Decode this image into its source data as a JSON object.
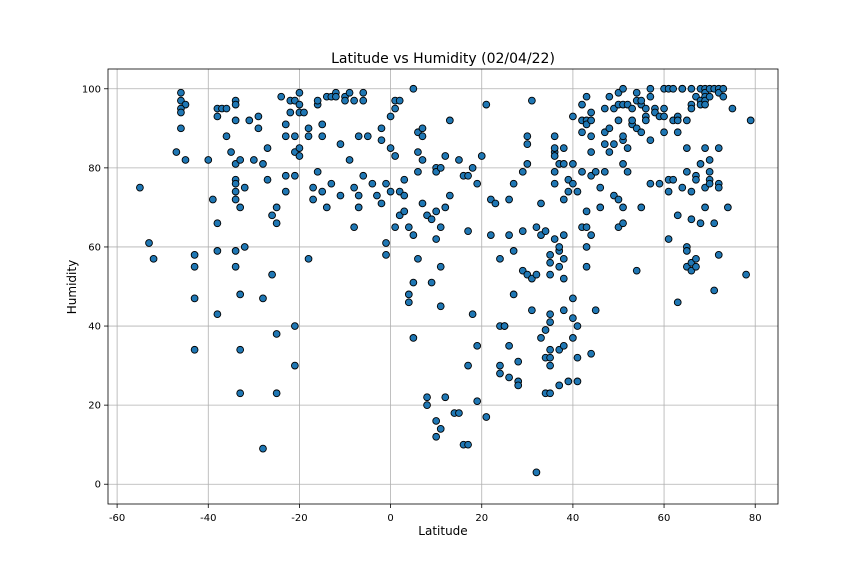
{
  "chart_data": {
    "type": "scatter",
    "title": "Latitude vs Humidity (02/04/22)",
    "xlabel": "Latitude",
    "ylabel": "Humidity",
    "xlim": [
      -62,
      85
    ],
    "ylim": [
      -5,
      105
    ],
    "xticks": [
      -60,
      -40,
      -20,
      0,
      20,
      40,
      60,
      80
    ],
    "yticks": [
      0,
      20,
      40,
      60,
      80,
      100
    ],
    "grid": true,
    "marker_color": "#1f77b4",
    "marker_edge": "#000000",
    "points": [
      [
        -55,
        75
      ],
      [
        -53,
        61
      ],
      [
        -52,
        57
      ],
      [
        -46,
        99
      ],
      [
        -46,
        97
      ],
      [
        -45,
        96
      ],
      [
        -46,
        95
      ],
      [
        -46,
        94
      ],
      [
        -46,
        90
      ],
      [
        -47,
        84
      ],
      [
        -45,
        82
      ],
      [
        -43,
        58
      ],
      [
        -43,
        55
      ],
      [
        -43,
        47
      ],
      [
        -43,
        34
      ],
      [
        -40,
        82
      ],
      [
        -39,
        72
      ],
      [
        -38,
        95
      ],
      [
        -38,
        93
      ],
      [
        -38,
        66
      ],
      [
        -38,
        59
      ],
      [
        -38,
        43
      ],
      [
        -37,
        95
      ],
      [
        -36,
        88
      ],
      [
        -36,
        95
      ],
      [
        -35,
        84
      ],
      [
        -34,
        97
      ],
      [
        -34,
        96
      ],
      [
        -34,
        92
      ],
      [
        -34,
        81
      ],
      [
        -34,
        77
      ],
      [
        -34,
        76
      ],
      [
        -34,
        74
      ],
      [
        -34,
        72
      ],
      [
        -33,
        70
      ],
      [
        -34,
        59
      ],
      [
        -34,
        55
      ],
      [
        -33,
        48
      ],
      [
        -33,
        34
      ],
      [
        -33,
        23
      ],
      [
        -33,
        82
      ],
      [
        -32,
        75
      ],
      [
        -32,
        60
      ],
      [
        -31,
        92
      ],
      [
        -30,
        82
      ],
      [
        -29,
        90
      ],
      [
        -29,
        93
      ],
      [
        -28,
        81
      ],
      [
        -28,
        47
      ],
      [
        -28,
        9
      ],
      [
        -27,
        77
      ],
      [
        -27,
        85
      ],
      [
        -26,
        68
      ],
      [
        -26,
        53
      ],
      [
        -25,
        66
      ],
      [
        -25,
        70
      ],
      [
        -25,
        38
      ],
      [
        -25,
        23
      ],
      [
        -24,
        98
      ],
      [
        -23,
        91
      ],
      [
        -23,
        88
      ],
      [
        -23,
        78
      ],
      [
        -23,
        74
      ],
      [
        -22,
        97
      ],
      [
        -22,
        94
      ],
      [
        -21,
        97
      ],
      [
        -21,
        88
      ],
      [
        -21,
        84
      ],
      [
        -21,
        78
      ],
      [
        -21,
        40
      ],
      [
        -21,
        30
      ],
      [
        -20,
        99
      ],
      [
        -20,
        96
      ],
      [
        -20,
        94
      ],
      [
        -20,
        85
      ],
      [
        -20,
        83
      ],
      [
        -19,
        94
      ],
      [
        -18,
        90
      ],
      [
        -18,
        88
      ],
      [
        -18,
        57
      ],
      [
        -17,
        75
      ],
      [
        -17,
        72
      ],
      [
        -16,
        96
      ],
      [
        -16,
        97
      ],
      [
        -16,
        79
      ],
      [
        -15,
        88
      ],
      [
        -15,
        91
      ],
      [
        -15,
        74
      ],
      [
        -14,
        98
      ],
      [
        -14,
        70
      ],
      [
        -13,
        98
      ],
      [
        -13,
        76
      ],
      [
        -12,
        99
      ],
      [
        -12,
        98
      ],
      [
        -11,
        73
      ],
      [
        -11,
        86
      ],
      [
        -10,
        98
      ],
      [
        -10,
        97
      ],
      [
        -9,
        99
      ],
      [
        -9,
        82
      ],
      [
        -8,
        97
      ],
      [
        -8,
        75
      ],
      [
        -8,
        65
      ],
      [
        -7,
        70
      ],
      [
        -7,
        88
      ],
      [
        -7,
        73
      ],
      [
        -6,
        78
      ],
      [
        -6,
        99
      ],
      [
        -6,
        97
      ],
      [
        -5,
        88
      ],
      [
        -4,
        76
      ],
      [
        -3,
        73
      ],
      [
        -2,
        90
      ],
      [
        -2,
        87
      ],
      [
        -2,
        71
      ],
      [
        -1,
        61
      ],
      [
        -1,
        58
      ],
      [
        -1,
        76
      ],
      [
        0,
        85
      ],
      [
        0,
        93
      ],
      [
        0,
        74
      ],
      [
        1,
        97
      ],
      [
        1,
        95
      ],
      [
        1,
        83
      ],
      [
        1,
        65
      ],
      [
        2,
        97
      ],
      [
        2,
        74
      ],
      [
        2,
        68
      ],
      [
        3,
        73
      ],
      [
        3,
        69
      ],
      [
        3,
        77
      ],
      [
        4,
        46
      ],
      [
        4,
        48
      ],
      [
        4,
        65
      ],
      [
        5,
        100
      ],
      [
        5,
        37
      ],
      [
        5,
        63
      ],
      [
        5,
        51
      ],
      [
        6,
        84
      ],
      [
        6,
        79
      ],
      [
        6,
        89
      ],
      [
        6,
        57
      ],
      [
        7,
        90
      ],
      [
        7,
        88
      ],
      [
        7,
        82
      ],
      [
        7,
        71
      ],
      [
        8,
        68
      ],
      [
        8,
        22
      ],
      [
        8,
        20
      ],
      [
        9,
        67
      ],
      [
        9,
        51
      ],
      [
        10,
        80
      ],
      [
        10,
        79
      ],
      [
        10,
        62
      ],
      [
        10,
        69
      ],
      [
        10,
        12
      ],
      [
        10,
        16
      ],
      [
        11,
        80
      ],
      [
        11,
        65
      ],
      [
        11,
        55
      ],
      [
        11,
        45
      ],
      [
        11,
        14
      ],
      [
        12,
        70
      ],
      [
        12,
        83
      ],
      [
        12,
        22
      ],
      [
        13,
        92
      ],
      [
        13,
        73
      ],
      [
        14,
        18
      ],
      [
        15,
        18
      ],
      [
        15,
        82
      ],
      [
        16,
        78
      ],
      [
        16,
        10
      ],
      [
        17,
        10
      ],
      [
        17,
        78
      ],
      [
        17,
        64
      ],
      [
        17,
        30
      ],
      [
        18,
        80
      ],
      [
        18,
        43
      ],
      [
        19,
        76
      ],
      [
        19,
        35
      ],
      [
        19,
        21
      ],
      [
        20,
        83
      ],
      [
        21,
        17
      ],
      [
        21,
        96
      ],
      [
        22,
        63
      ],
      [
        22,
        72
      ],
      [
        23,
        71
      ],
      [
        24,
        57
      ],
      [
        24,
        40
      ],
      [
        24,
        30
      ],
      [
        24,
        28
      ],
      [
        25,
        40
      ],
      [
        25,
        40
      ],
      [
        26,
        72
      ],
      [
        26,
        63
      ],
      [
        26,
        35
      ],
      [
        26,
        27
      ],
      [
        27,
        76
      ],
      [
        27,
        48
      ],
      [
        27,
        59
      ],
      [
        28,
        26
      ],
      [
        28,
        31
      ],
      [
        28,
        25
      ],
      [
        29,
        64
      ],
      [
        29,
        54
      ],
      [
        29,
        79
      ],
      [
        30,
        53
      ],
      [
        30,
        81
      ],
      [
        30,
        86
      ],
      [
        30,
        88
      ],
      [
        31,
        97
      ],
      [
        31,
        44
      ],
      [
        31,
        52
      ],
      [
        32,
        53
      ],
      [
        32,
        3
      ],
      [
        32,
        65
      ],
      [
        33,
        63
      ],
      [
        33,
        37
      ],
      [
        33,
        71
      ],
      [
        34,
        23
      ],
      [
        34,
        64
      ],
      [
        34,
        32
      ],
      [
        34,
        39
      ],
      [
        35,
        41
      ],
      [
        35,
        32
      ],
      [
        35,
        30
      ],
      [
        35,
        53
      ],
      [
        35,
        58
      ],
      [
        35,
        56
      ],
      [
        35,
        34
      ],
      [
        35,
        43
      ],
      [
        35,
        23
      ],
      [
        36,
        88
      ],
      [
        36,
        84
      ],
      [
        36,
        83
      ],
      [
        36,
        79
      ],
      [
        36,
        62
      ],
      [
        36,
        76
      ],
      [
        36,
        85
      ],
      [
        37,
        81
      ],
      [
        37,
        59
      ],
      [
        37,
        55
      ],
      [
        37,
        34
      ],
      [
        37,
        25
      ],
      [
        37,
        60
      ],
      [
        38,
        81
      ],
      [
        38,
        85
      ],
      [
        38,
        52
      ],
      [
        38,
        72
      ],
      [
        38,
        63
      ],
      [
        38,
        57
      ],
      [
        38,
        44
      ],
      [
        38,
        35
      ],
      [
        39,
        26
      ],
      [
        39,
        74
      ],
      [
        39,
        77
      ],
      [
        40,
        76
      ],
      [
        40,
        81
      ],
      [
        40,
        93
      ],
      [
        40,
        47
      ],
      [
        40,
        42
      ],
      [
        40,
        37
      ],
      [
        41,
        32
      ],
      [
        41,
        26
      ],
      [
        41,
        40
      ],
      [
        41,
        74
      ],
      [
        42,
        92
      ],
      [
        42,
        89
      ],
      [
        42,
        65
      ],
      [
        42,
        96
      ],
      [
        42,
        79
      ],
      [
        43,
        98
      ],
      [
        43,
        92
      ],
      [
        43,
        91
      ],
      [
        43,
        69
      ],
      [
        43,
        65
      ],
      [
        43,
        60
      ],
      [
        43,
        55
      ],
      [
        44,
        94
      ],
      [
        44,
        92
      ],
      [
        44,
        84
      ],
      [
        44,
        88
      ],
      [
        44,
        63
      ],
      [
        44,
        78
      ],
      [
        44,
        33
      ],
      [
        45,
        44
      ],
      [
        45,
        79
      ],
      [
        46,
        75
      ],
      [
        46,
        70
      ],
      [
        47,
        95
      ],
      [
        47,
        89
      ],
      [
        47,
        86
      ],
      [
        47,
        79
      ],
      [
        48,
        90
      ],
      [
        48,
        98
      ],
      [
        48,
        84
      ],
      [
        49,
        86
      ],
      [
        49,
        73
      ],
      [
        49,
        95
      ],
      [
        50,
        96
      ],
      [
        50,
        92
      ],
      [
        50,
        99
      ],
      [
        50,
        65
      ],
      [
        50,
        72
      ],
      [
        51,
        100
      ],
      [
        51,
        96
      ],
      [
        51,
        87
      ],
      [
        51,
        88
      ],
      [
        51,
        81
      ],
      [
        51,
        66
      ],
      [
        51,
        70
      ],
      [
        52,
        85
      ],
      [
        52,
        79
      ],
      [
        52,
        96
      ],
      [
        53,
        91
      ],
      [
        53,
        92
      ],
      [
        53,
        95
      ],
      [
        54,
        97
      ],
      [
        54,
        90
      ],
      [
        54,
        99
      ],
      [
        54,
        54
      ],
      [
        55,
        96
      ],
      [
        55,
        89
      ],
      [
        55,
        97
      ],
      [
        55,
        70
      ],
      [
        56,
        93
      ],
      [
        56,
        92
      ],
      [
        56,
        95
      ],
      [
        57,
        100
      ],
      [
        57,
        98
      ],
      [
        57,
        87
      ],
      [
        57,
        76
      ],
      [
        58,
        95
      ],
      [
        58,
        94
      ],
      [
        59,
        93
      ],
      [
        59,
        76
      ],
      [
        60,
        100
      ],
      [
        60,
        93
      ],
      [
        60,
        95
      ],
      [
        60,
        89
      ],
      [
        61,
        100
      ],
      [
        61,
        62
      ],
      [
        61,
        74
      ],
      [
        61,
        77
      ],
      [
        62,
        100
      ],
      [
        62,
        92
      ],
      [
        62,
        77
      ],
      [
        63,
        93
      ],
      [
        63,
        92
      ],
      [
        63,
        89
      ],
      [
        63,
        68
      ],
      [
        63,
        46
      ],
      [
        64,
        100
      ],
      [
        64,
        100
      ],
      [
        64,
        75
      ],
      [
        65,
        92
      ],
      [
        65,
        85
      ],
      [
        65,
        79
      ],
      [
        65,
        60
      ],
      [
        65,
        59
      ],
      [
        65,
        55
      ],
      [
        66,
        100
      ],
      [
        66,
        96
      ],
      [
        66,
        95
      ],
      [
        66,
        74
      ],
      [
        66,
        56
      ],
      [
        66,
        54
      ],
      [
        66,
        67
      ],
      [
        67,
        98
      ],
      [
        67,
        78
      ],
      [
        67,
        77
      ],
      [
        67,
        57
      ],
      [
        67,
        55
      ],
      [
        68,
        100
      ],
      [
        68,
        97
      ],
      [
        68,
        96
      ],
      [
        68,
        81
      ],
      [
        68,
        66
      ],
      [
        69,
        100
      ],
      [
        69,
        99
      ],
      [
        69,
        98
      ],
      [
        69,
        97
      ],
      [
        69,
        96
      ],
      [
        69,
        85
      ],
      [
        69,
        75
      ],
      [
        69,
        70
      ],
      [
        70,
        100
      ],
      [
        70,
        98
      ],
      [
        70,
        82
      ],
      [
        70,
        79
      ],
      [
        70,
        77
      ],
      [
        70,
        76
      ],
      [
        71,
        100
      ],
      [
        71,
        66
      ],
      [
        71,
        49
      ],
      [
        72,
        100
      ],
      [
        72,
        99
      ],
      [
        72,
        85
      ],
      [
        72,
        76
      ],
      [
        72,
        58
      ],
      [
        72,
        75
      ],
      [
        73,
        100
      ],
      [
        73,
        98
      ],
      [
        74,
        70
      ],
      [
        75,
        95
      ],
      [
        78,
        53
      ],
      [
        79,
        92
      ]
    ]
  }
}
